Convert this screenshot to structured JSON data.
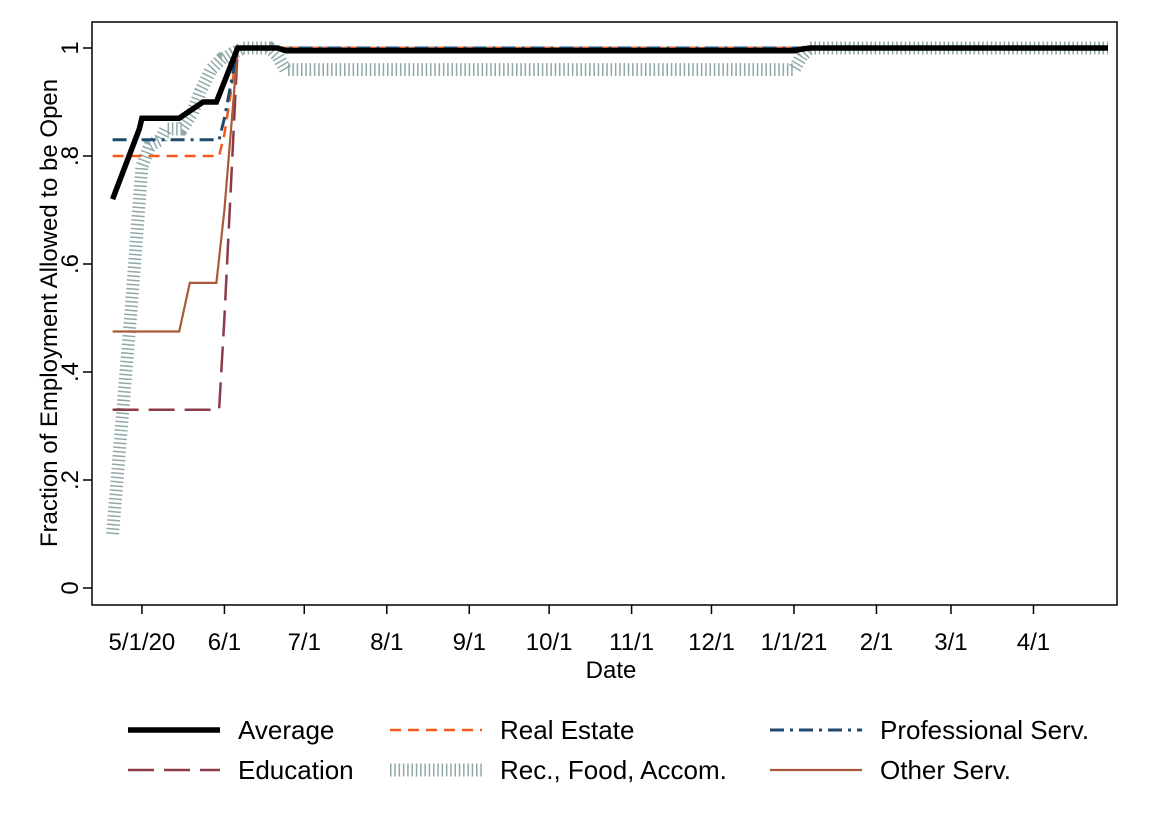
{
  "chart_data": {
    "type": "line",
    "title": "",
    "xlabel": "Date",
    "ylabel": "Fraction of Employment Allowed to be Open",
    "ylim": [
      0,
      1
    ],
    "xlim": [
      "2020-04-16",
      "2021-04-29"
    ],
    "grid": false,
    "legend_position": "bottom",
    "x_ticks": [
      {
        "date": "2020-05-01",
        "label": "5/1/20"
      },
      {
        "date": "2020-06-01",
        "label": "6/1"
      },
      {
        "date": "2020-07-01",
        "label": "7/1"
      },
      {
        "date": "2020-08-01",
        "label": "8/1"
      },
      {
        "date": "2020-09-01",
        "label": "9/1"
      },
      {
        "date": "2020-10-01",
        "label": "10/1"
      },
      {
        "date": "2020-11-01",
        "label": "11/1"
      },
      {
        "date": "2020-12-01",
        "label": "12/1"
      },
      {
        "date": "2021-01-01",
        "label": "1/1/21"
      },
      {
        "date": "2021-02-01",
        "label": "2/1"
      },
      {
        "date": "2021-03-01",
        "label": "3/1"
      },
      {
        "date": "2021-04-01",
        "label": "4/1"
      }
    ],
    "y_ticks": [
      {
        "value": 0,
        "label": "0"
      },
      {
        "value": 0.2,
        "label": ".2"
      },
      {
        "value": 0.4,
        "label": ".4"
      },
      {
        "value": 0.6,
        "label": ".6"
      },
      {
        "value": 0.8,
        "label": ".8"
      },
      {
        "value": 1,
        "label": "1"
      }
    ],
    "series": [
      {
        "name": "Rec., Food, Accom.",
        "color": "#90a8a8",
        "style": "hatched",
        "x": [
          "2020-04-20",
          "2020-04-23",
          "2020-04-27",
          "2020-05-01",
          "2020-05-04",
          "2020-05-08",
          "2020-05-10",
          "2020-05-13",
          "2020-05-16",
          "2020-05-20",
          "2020-05-23",
          "2020-05-27",
          "2020-05-31",
          "2020-06-01",
          "2020-06-04",
          "2020-06-08",
          "2020-06-18",
          "2020-06-21",
          "2020-06-24",
          "2021-01-01",
          "2021-01-04",
          "2021-01-07",
          "2021-04-29"
        ],
        "y": [
          0.1,
          0.28,
          0.52,
          0.78,
          0.82,
          0.83,
          0.85,
          0.85,
          0.85,
          0.88,
          0.92,
          0.96,
          0.98,
          0.98,
          0.99,
          1.0,
          1.0,
          0.985,
          0.96,
          0.96,
          0.985,
          1.0,
          1.0
        ]
      },
      {
        "name": "Education",
        "color": "#8b3a48",
        "style": "longdash",
        "x": [
          "2020-04-20",
          "2020-05-30",
          "2020-06-01",
          "2020-06-06",
          "2021-04-29"
        ],
        "y": [
          0.33,
          0.33,
          0.5,
          1.0,
          1.0
        ]
      },
      {
        "name": "Other Serv.",
        "color": "#a85a3a",
        "style": "solid",
        "x": [
          "2020-04-20",
          "2020-05-15",
          "2020-05-17",
          "2020-05-19",
          "2020-05-29",
          "2020-06-01",
          "2020-06-06",
          "2021-04-29"
        ],
        "y": [
          0.475,
          0.475,
          0.52,
          0.565,
          0.565,
          0.7,
          1.0,
          1.0
        ]
      },
      {
        "name": "Real Estate",
        "color": "#f05a1e",
        "style": "dash",
        "x": [
          "2020-04-20",
          "2020-05-30",
          "2020-06-01",
          "2020-06-06",
          "2021-04-29"
        ],
        "y": [
          0.8,
          0.8,
          0.84,
          1.0,
          1.0
        ]
      },
      {
        "name": "Professional Serv.",
        "color": "#1e4a6e",
        "style": "dashdot",
        "x": [
          "2020-04-20",
          "2020-05-30",
          "2020-06-01",
          "2020-06-06",
          "2021-04-29"
        ],
        "y": [
          0.83,
          0.83,
          0.87,
          1.0,
          1.0
        ]
      },
      {
        "name": "Average",
        "color": "#000000",
        "style": "thick",
        "x": [
          "2020-04-20",
          "2020-04-30",
          "2020-05-01",
          "2020-05-15",
          "2020-05-24",
          "2020-05-29",
          "2020-06-06",
          "2020-06-21",
          "2020-06-24",
          "2021-01-01",
          "2021-01-04",
          "2021-01-07",
          "2021-04-29"
        ],
        "y": [
          0.72,
          0.85,
          0.87,
          0.87,
          0.9,
          0.9,
          1.0,
          1.0,
          0.995,
          0.995,
          0.998,
          1.0,
          1.0
        ]
      }
    ],
    "legend": [
      {
        "series": "Average",
        "label": "Average"
      },
      {
        "series": "Real Estate",
        "label": "Real Estate"
      },
      {
        "series": "Professional Serv.",
        "label": "Professional Serv."
      },
      {
        "series": "Education",
        "label": "Education"
      },
      {
        "series": "Rec., Food, Accom.",
        "label": "Rec., Food, Accom."
      },
      {
        "series": "Other Serv.",
        "label": "Other Serv."
      }
    ]
  }
}
